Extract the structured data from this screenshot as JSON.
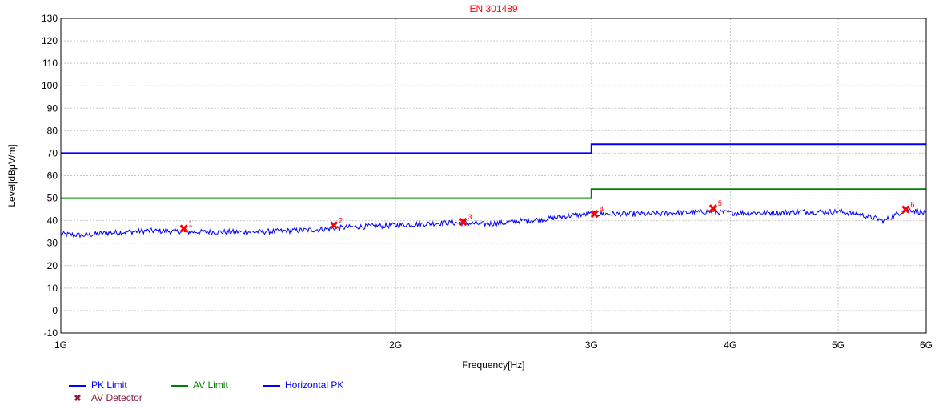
{
  "chart_data": {
    "type": "line",
    "title": "EN 301489",
    "xlabel": "Frequency[Hz]",
    "ylabel": "Level[dBμV/m]",
    "x_scale": "log",
    "xlim": [
      1000000000,
      6000000000
    ],
    "ylim": [
      -10,
      130
    ],
    "x_ticks": [
      {
        "value": 1000000000,
        "label": "1G"
      },
      {
        "value": 2000000000,
        "label": "2G"
      },
      {
        "value": 3000000000,
        "label": "3G"
      },
      {
        "value": 4000000000,
        "label": "4G"
      },
      {
        "value": 5000000000,
        "label": "5G"
      },
      {
        "value": 6000000000,
        "label": "6G"
      }
    ],
    "y_ticks": [
      -10,
      0,
      10,
      20,
      30,
      40,
      50,
      60,
      70,
      80,
      90,
      100,
      110,
      120,
      130
    ],
    "grid": true,
    "legend_position": "bottom-left",
    "series": [
      {
        "name": "PK Limit",
        "color": "#0000ff",
        "kind": "step",
        "points": [
          [
            1000000000,
            70
          ],
          [
            3000000000,
            70
          ],
          [
            3000000000,
            74
          ],
          [
            6000000000,
            74
          ]
        ]
      },
      {
        "name": "AV Limit",
        "color": "#008000",
        "kind": "step",
        "points": [
          [
            1000000000,
            50
          ],
          [
            3000000000,
            50
          ],
          [
            3000000000,
            54
          ],
          [
            6000000000,
            54
          ]
        ]
      },
      {
        "name": "Horizontal PK",
        "color": "#0000ff",
        "kind": "trace",
        "points": [
          [
            1000000000,
            34
          ],
          [
            1050000000,
            33.5
          ],
          [
            1100000000,
            34.5
          ],
          [
            1200000000,
            35.5
          ],
          [
            1300000000,
            35
          ],
          [
            1400000000,
            35
          ],
          [
            1500000000,
            35
          ],
          [
            1600000000,
            35.5
          ],
          [
            1700000000,
            36
          ],
          [
            1800000000,
            37
          ],
          [
            1900000000,
            37.5
          ],
          [
            2000000000,
            38
          ],
          [
            2100000000,
            38.5
          ],
          [
            2200000000,
            39
          ],
          [
            2300000000,
            39
          ],
          [
            2400000000,
            38.5
          ],
          [
            2500000000,
            39
          ],
          [
            2600000000,
            40
          ],
          [
            2700000000,
            40.5
          ],
          [
            2800000000,
            41.5
          ],
          [
            2900000000,
            42.5
          ],
          [
            3000000000,
            43
          ],
          [
            3200000000,
            43
          ],
          [
            3400000000,
            43
          ],
          [
            3600000000,
            43.5
          ],
          [
            3800000000,
            44
          ],
          [
            4000000000,
            43.5
          ],
          [
            4200000000,
            43.5
          ],
          [
            4400000000,
            43.5
          ],
          [
            4600000000,
            44
          ],
          [
            4800000000,
            44
          ],
          [
            5000000000,
            44
          ],
          [
            5200000000,
            43
          ],
          [
            5400000000,
            41
          ],
          [
            5500000000,
            40
          ],
          [
            5600000000,
            42
          ],
          [
            5700000000,
            44
          ],
          [
            5800000000,
            45
          ],
          [
            5900000000,
            44
          ],
          [
            6000000000,
            43
          ]
        ]
      },
      {
        "name": "AV Detector",
        "color": "#ff0000",
        "kind": "markers",
        "points": [
          {
            "label": "1",
            "x": 1290000000,
            "y": 36.5
          },
          {
            "label": "2",
            "x": 1760000000,
            "y": 38
          },
          {
            "label": "3",
            "x": 2300000000,
            "y": 39.5
          },
          {
            "label": "4",
            "x": 3020000000,
            "y": 43
          },
          {
            "label": "5",
            "x": 3860000000,
            "y": 45.5
          },
          {
            "label": "6",
            "x": 5750000000,
            "y": 45
          }
        ]
      }
    ],
    "legend": [
      {
        "label": "PK Limit",
        "color": "#0000ff",
        "symbol": "line"
      },
      {
        "label": "AV Limit",
        "color": "#008000",
        "symbol": "line"
      },
      {
        "label": "Horizontal PK",
        "color": "#0000ff",
        "symbol": "line"
      },
      {
        "label": "AV Detector",
        "color": "#8b1a3a",
        "symbol": "x"
      }
    ]
  }
}
